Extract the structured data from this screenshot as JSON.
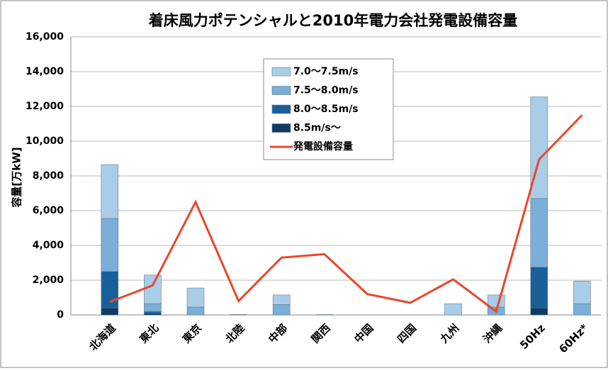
{
  "chart_data": {
    "type": "bar",
    "title": "着床風力ポテンシャルと2010年電力会社発電設備容量",
    "y_label": "容量[万kW]",
    "categories": [
      "北海道",
      "東北",
      "東京",
      "北陸",
      "中部",
      "関西",
      "中国",
      "四国",
      "九州",
      "沖縄",
      "50Hz",
      "60Hz*"
    ],
    "stacked": true,
    "series": [
      {
        "name": "8.5m/s〜",
        "color": "#0e3a64",
        "values": [
          400,
          100,
          0,
          0,
          0,
          0,
          0,
          0,
          0,
          0,
          400,
          0
        ]
      },
      {
        "name": "8.0〜8.5m/s",
        "color": "#17609a",
        "values": [
          2100,
          100,
          0,
          0,
          0,
          0,
          0,
          0,
          0,
          0,
          2350,
          0
        ]
      },
      {
        "name": "7.5〜8.0m/s",
        "color": "#7aafd9",
        "values": [
          3050,
          450,
          450,
          0,
          600,
          0,
          0,
          0,
          0,
          450,
          3950,
          650
        ]
      },
      {
        "name": "7.0〜7.5m/s",
        "color": "#a9cde8",
        "values": [
          3100,
          1650,
          1100,
          30,
          550,
          20,
          0,
          0,
          650,
          700,
          5850,
          1300
        ]
      },
      {
        "name": "発電設備容量",
        "type": "line",
        "color": "#e8472b",
        "values": [
          750,
          1700,
          6500,
          800,
          3300,
          3500,
          1200,
          700,
          2050,
          200,
          8950,
          11500
        ]
      }
    ],
    "ylim": [
      0,
      16000
    ],
    "yticks": [
      0,
      {
        "value": 2000,
        "label": "2,000"
      },
      {
        "value": 4000,
        "label": "4,000"
      },
      {
        "value": 6000,
        "label": "6,000"
      },
      {
        "value": 8000,
        "label": "8,000"
      },
      {
        "value": 10000,
        "label": "10,000"
      },
      {
        "value": 12000,
        "label": "12,000"
      },
      {
        "value": 14000,
        "label": "14,000"
      },
      {
        "value": 16000,
        "label": "16,000"
      }
    ],
    "grid": true
  }
}
